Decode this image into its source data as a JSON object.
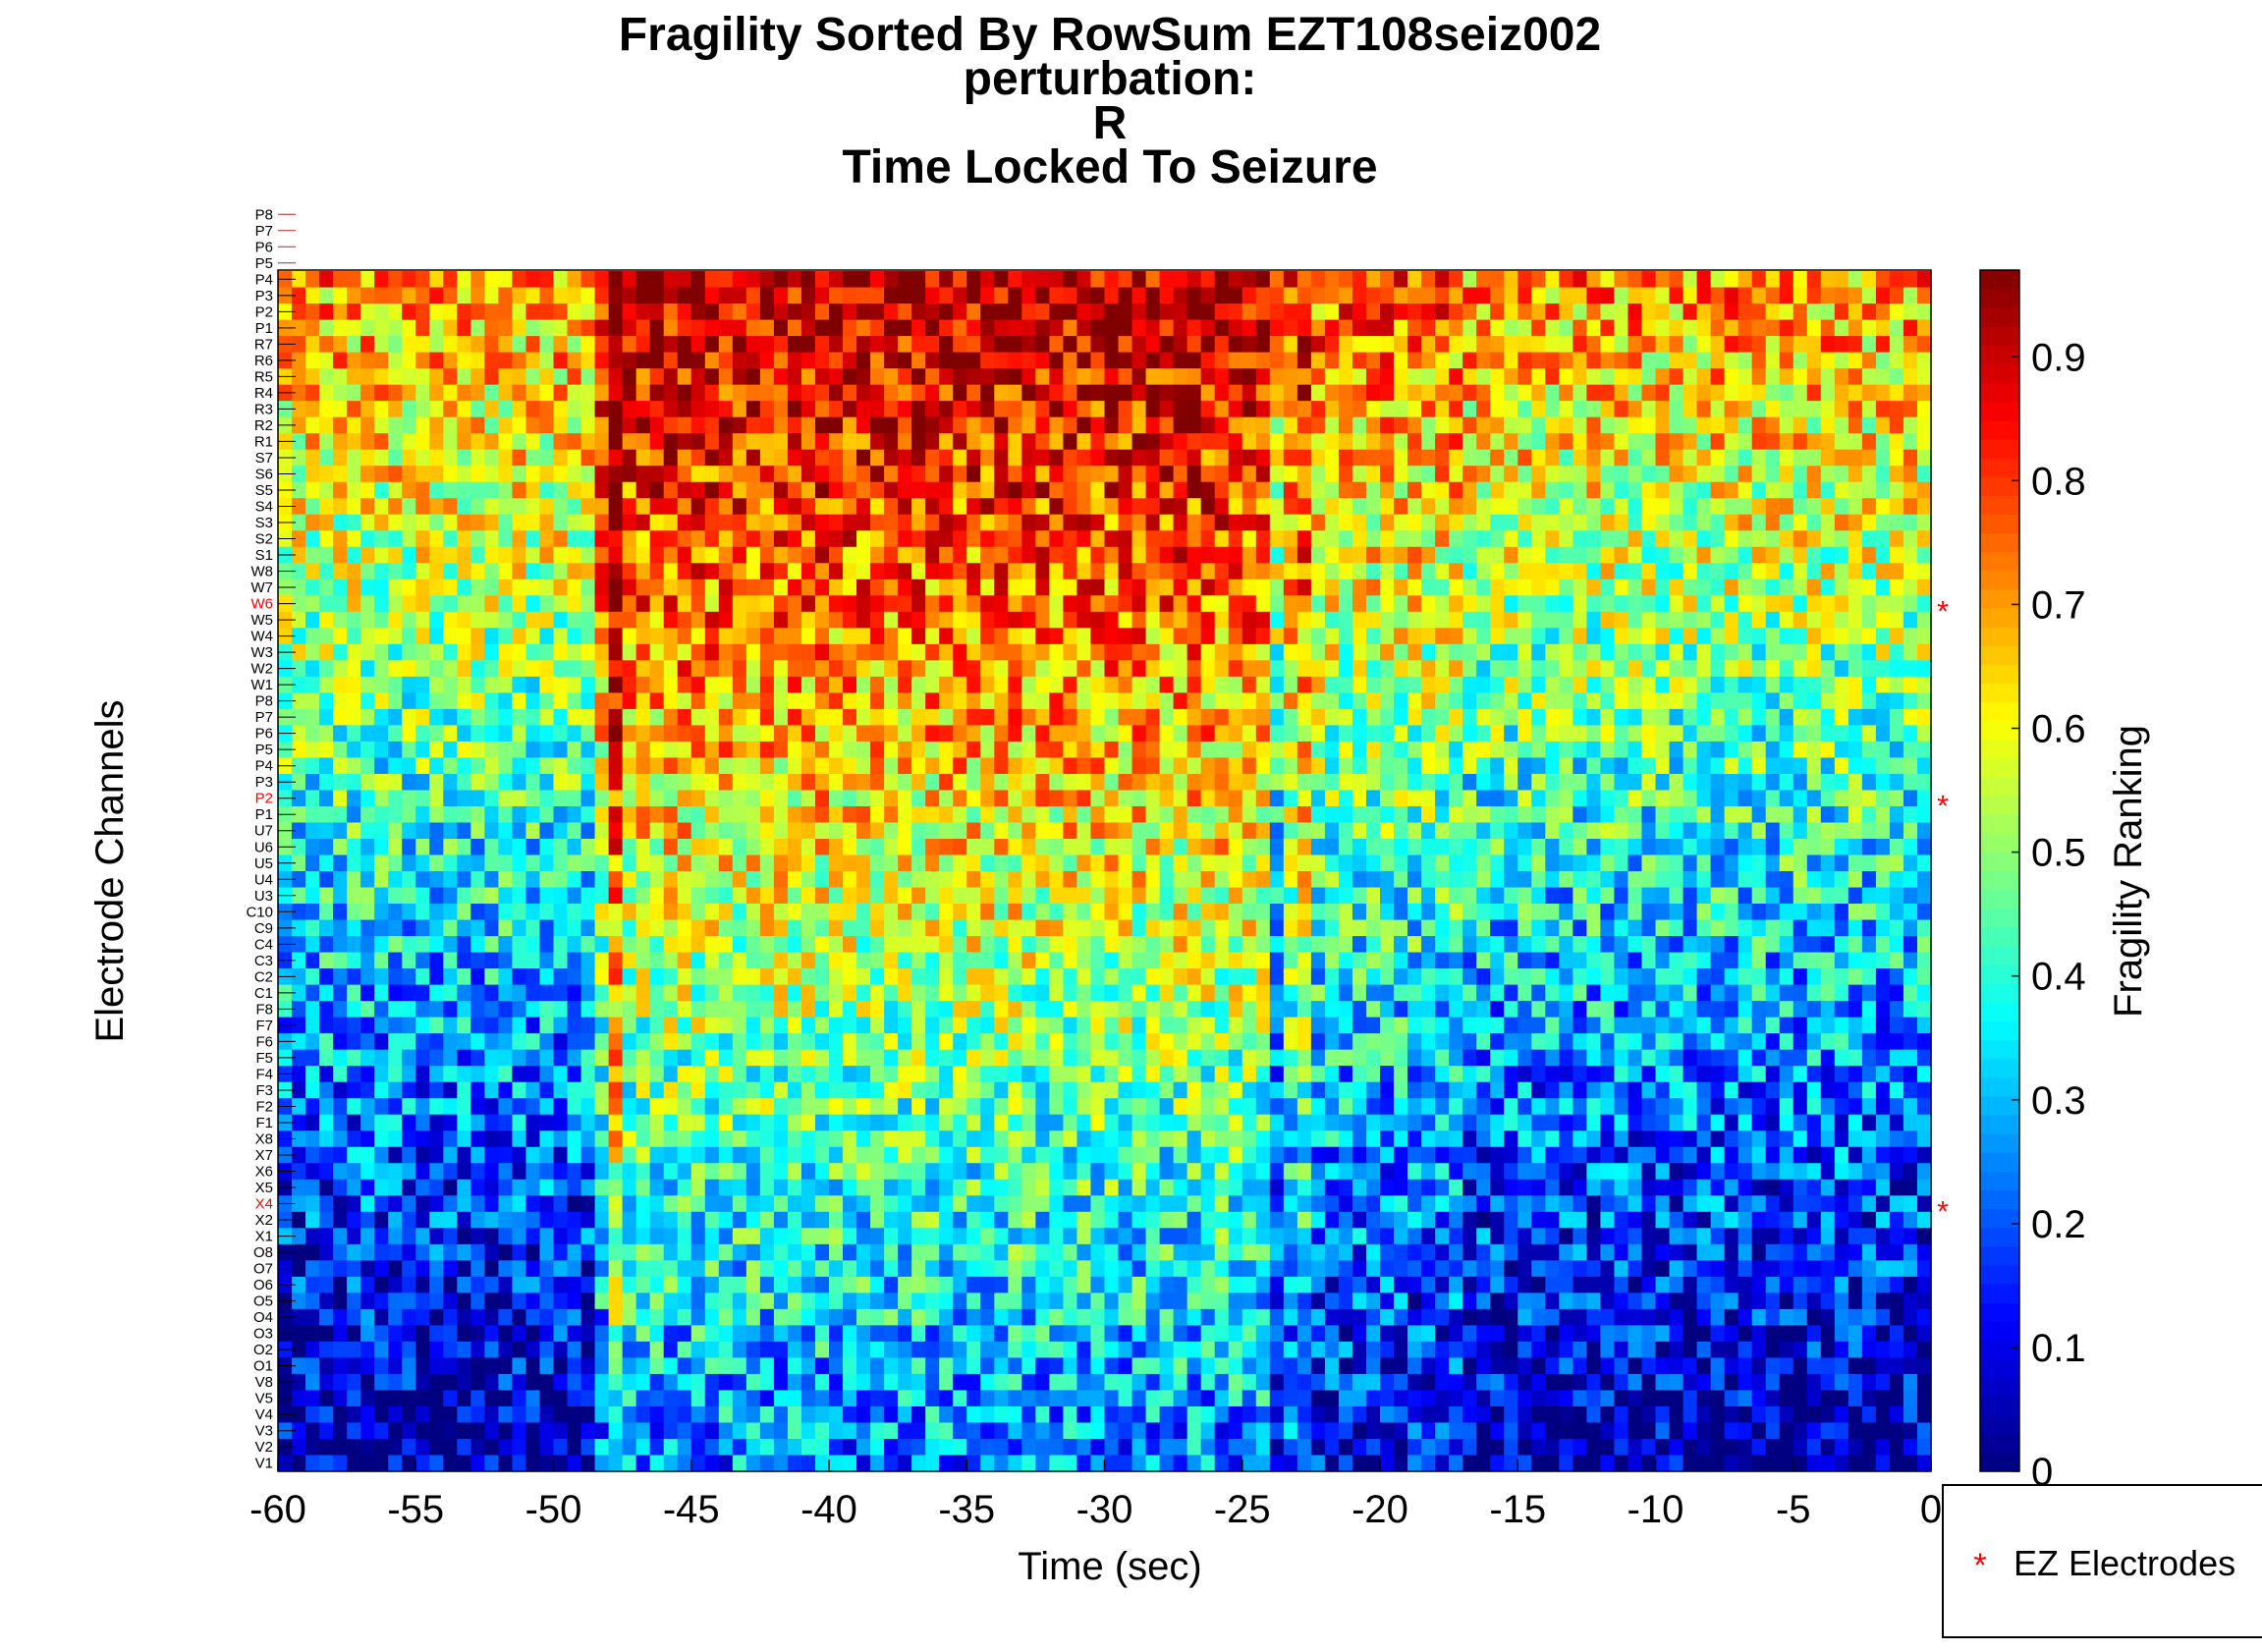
{
  "chart_data": {
    "type": "heatmap",
    "title": [
      "Fragility Sorted By RowSum EZT108seiz002",
      "perturbation:",
      "R",
      "Time Locked To Seizure"
    ],
    "xlabel": "Time (sec)",
    "ylabel": "Electrode Channels",
    "colorbar_label": "Fragility Ranking",
    "colormap": "jet",
    "xlim": [
      -60,
      0
    ],
    "x_ticks": [
      -60,
      -55,
      -50,
      -45,
      -40,
      -35,
      -30,
      -25,
      -20,
      -15,
      -10,
      -5,
      0
    ],
    "x_tick_labels": [
      "-60",
      "-55",
      "-50",
      "-45",
      "-40",
      "-35",
      "-30",
      "-25",
      "-20",
      "-15",
      "-10",
      "-5",
      "0"
    ],
    "clim": [
      0,
      0.97
    ],
    "colorbar_ticks": [
      0,
      0.1,
      0.2,
      0.3,
      0.4,
      0.5,
      0.6,
      0.7,
      0.8,
      0.9
    ],
    "colorbar_tick_labels": [
      "0",
      "0.1",
      "0.2",
      "0.3",
      "0.4",
      "0.5",
      "0.6",
      "0.7",
      "0.8",
      "0.9"
    ],
    "channels_top_to_bottom": [
      "P8",
      "P7",
      "P6",
      "P5",
      "P4",
      "P3",
      "P2",
      "P1",
      "R7",
      "R6",
      "R5",
      "R4",
      "R3",
      "R2",
      "R1",
      "S7",
      "S6",
      "S5",
      "S4",
      "S3",
      "S2",
      "S1",
      "W8",
      "W7",
      "W6",
      "W5",
      "W4",
      "W3",
      "W2",
      "W1",
      "P8",
      "P7",
      "P6",
      "P5",
      "P4",
      "P3",
      "P2",
      "P1",
      "U7",
      "U6",
      "U5",
      "U4",
      "U3",
      "C10",
      "C9",
      "C4",
      "C3",
      "C2",
      "C1",
      "F8",
      "F7",
      "F6",
      "F5",
      "F4",
      "F3",
      "F2",
      "F1",
      "X8",
      "X7",
      "X6",
      "X5",
      "X4",
      "X2",
      "X1",
      "O8",
      "O7",
      "O6",
      "O5",
      "O4",
      "O3",
      "O2",
      "O1",
      "V8",
      "V5",
      "V4",
      "V3",
      "V2",
      "V1"
    ],
    "ez_channels": [
      "W6",
      "P2",
      "X4"
    ],
    "ez_channel_indices": [
      24,
      36,
      61
    ],
    "empty_channels": [
      "P8",
      "P7",
      "P6",
      "P5"
    ],
    "legend": {
      "entries": [
        "EZ Electrodes"
      ],
      "position": "bottom-right outside"
    },
    "colors": {
      "ez_marker": "#ff0000",
      "ez_label": "#ff0000",
      "label": "#000000"
    }
  }
}
